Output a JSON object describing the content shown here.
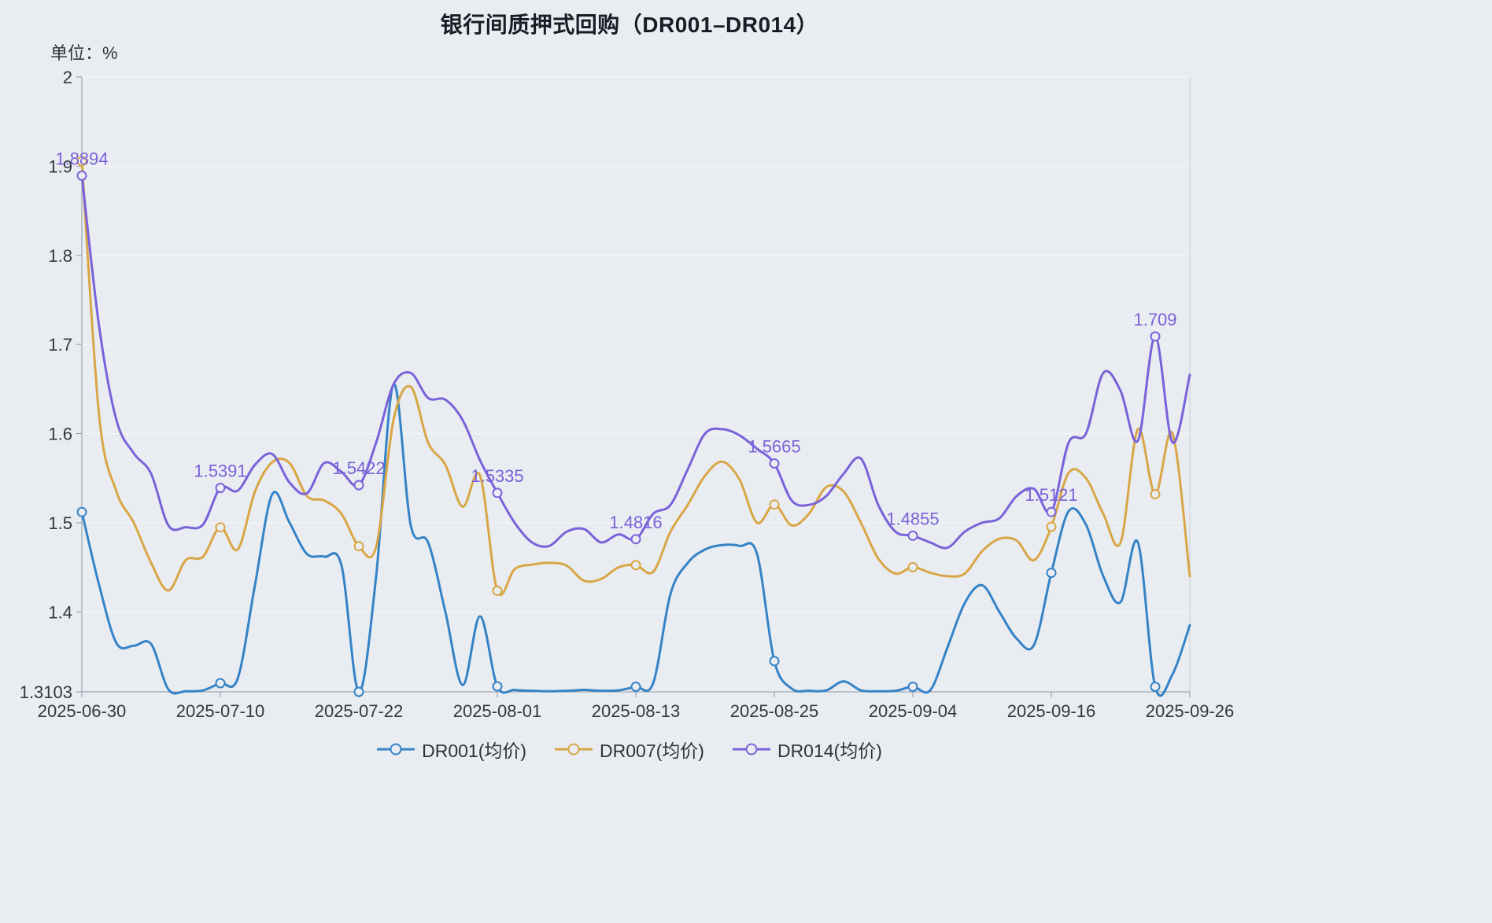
{
  "chart_data": {
    "type": "line",
    "title": "银行间质押式回购（DR001–DR014）",
    "unit_label": "单位：%",
    "background_color": "#e9edf2",
    "smooth": true,
    "grid": "subtle-horizontal",
    "legend_position": "bottom-center",
    "ylim": [
      1.3103,
      2
    ],
    "y_ticks": [
      {
        "value": 2,
        "label": "2"
      },
      {
        "value": 1.9,
        "label": "1.9"
      },
      {
        "value": 1.8,
        "label": "1.8"
      },
      {
        "value": 1.7,
        "label": "1.7"
      },
      {
        "value": 1.6,
        "label": "1.6"
      },
      {
        "value": 1.5,
        "label": "1.5"
      },
      {
        "value": 1.4,
        "label": "1.4"
      },
      {
        "value": 1.3103,
        "label": "1.3103"
      }
    ],
    "x": [
      "2025-06-30",
      "2025-07-01",
      "2025-07-02",
      "2025-07-03",
      "2025-07-04",
      "2025-07-07",
      "2025-07-08",
      "2025-07-09",
      "2025-07-10",
      "2025-07-11",
      "2025-07-14",
      "2025-07-15",
      "2025-07-16",
      "2025-07-17",
      "2025-07-18",
      "2025-07-21",
      "2025-07-22",
      "2025-07-23",
      "2025-07-24",
      "2025-07-25",
      "2025-07-28",
      "2025-07-29",
      "2025-07-30",
      "2025-07-31",
      "2025-08-01",
      "2025-08-04",
      "2025-08-05",
      "2025-08-06",
      "2025-08-07",
      "2025-08-08",
      "2025-08-11",
      "2025-08-12",
      "2025-08-13",
      "2025-08-14",
      "2025-08-15",
      "2025-08-18",
      "2025-08-19",
      "2025-08-20",
      "2025-08-21",
      "2025-08-22",
      "2025-08-25",
      "2025-08-26",
      "2025-08-27",
      "2025-08-28",
      "2025-08-29",
      "2025-09-01",
      "2025-09-02",
      "2025-09-03",
      "2025-09-04",
      "2025-09-05",
      "2025-09-08",
      "2025-09-09",
      "2025-09-10",
      "2025-09-11",
      "2025-09-12",
      "2025-09-15",
      "2025-09-16",
      "2025-09-17",
      "2025-09-18",
      "2025-09-19",
      "2025-09-22",
      "2025-09-23",
      "2025-09-24",
      "2025-09-25",
      "2025-09-26"
    ],
    "x_tick_indices": [
      0,
      8,
      16,
      24,
      32,
      40,
      48,
      56,
      64
    ],
    "marker_indices": [
      0,
      8,
      16,
      24,
      32,
      40,
      48,
      56,
      62
    ],
    "series": [
      {
        "name": "DR001(均价)",
        "color": "#3583c6",
        "values": [
          1.512,
          1.43,
          1.365,
          1.362,
          1.364,
          1.313,
          1.311,
          1.312,
          1.32,
          1.325,
          1.43,
          1.532,
          1.5,
          1.465,
          1.462,
          1.452,
          1.3103,
          1.44,
          1.6553,
          1.497,
          1.478,
          1.4,
          1.318,
          1.395,
          1.3165,
          1.3125,
          1.3115,
          1.311,
          1.3115,
          1.3125,
          1.3115,
          1.312,
          1.316,
          1.32,
          1.42,
          1.455,
          1.47,
          1.475,
          1.474,
          1.465,
          1.3448,
          1.314,
          1.3115,
          1.312,
          1.322,
          1.312,
          1.311,
          1.3115,
          1.316,
          1.312,
          1.36,
          1.41,
          1.43,
          1.4,
          1.37,
          1.363,
          1.4438,
          1.513,
          1.498,
          1.44,
          1.411,
          1.478,
          1.316,
          1.33,
          1.385
        ]
      },
      {
        "name": "DR007(均价)",
        "color": "#d9a646",
        "values": [
          1.9055,
          1.62,
          1.535,
          1.5,
          1.455,
          1.424,
          1.458,
          1.462,
          1.4949,
          1.47,
          1.535,
          1.568,
          1.567,
          1.53,
          1.525,
          1.51,
          1.4737,
          1.473,
          1.615,
          1.6525,
          1.59,
          1.565,
          1.518,
          1.553,
          1.4237,
          1.448,
          1.453,
          1.455,
          1.452,
          1.435,
          1.437,
          1.45,
          1.4525,
          1.445,
          1.49,
          1.52,
          1.553,
          1.5685,
          1.548,
          1.5,
          1.5205,
          1.497,
          1.51,
          1.54,
          1.535,
          1.5,
          1.46,
          1.443,
          1.4502,
          1.444,
          1.44,
          1.443,
          1.468,
          1.482,
          1.48,
          1.458,
          1.4955,
          1.556,
          1.55,
          1.51,
          1.478,
          1.605,
          1.532,
          1.6,
          1.44
        ]
      },
      {
        "name": "DR014(均价)",
        "color": "#7a62d8",
        "values": [
          1.8894,
          1.72,
          1.615,
          1.578,
          1.555,
          1.497,
          1.495,
          1.498,
          1.5391,
          1.536,
          1.565,
          1.577,
          1.545,
          1.533,
          1.567,
          1.557,
          1.5422,
          1.59,
          1.655,
          1.668,
          1.64,
          1.638,
          1.615,
          1.57,
          1.5335,
          1.5,
          1.478,
          1.474,
          1.49,
          1.493,
          1.478,
          1.487,
          1.4816,
          1.51,
          1.52,
          1.56,
          1.6,
          1.605,
          1.598,
          1.583,
          1.5665,
          1.525,
          1.52,
          1.53,
          1.555,
          1.572,
          1.52,
          1.49,
          1.4855,
          1.478,
          1.472,
          1.49,
          1.5,
          1.505,
          1.53,
          1.538,
          1.5121,
          1.59,
          1.6,
          1.668,
          1.648,
          1.592,
          1.709,
          1.59,
          1.666
        ],
        "point_labels": [
          {
            "index": 0,
            "text": "1.8894"
          },
          {
            "index": 8,
            "text": "1.5391"
          },
          {
            "index": 16,
            "text": "1.5422"
          },
          {
            "index": 24,
            "text": "1.5335"
          },
          {
            "index": 32,
            "text": "1.4816"
          },
          {
            "index": 40,
            "text": "1.5665"
          },
          {
            "index": 48,
            "text": "1.4855"
          },
          {
            "index": 56,
            "text": "1.5121"
          },
          {
            "index": 62,
            "text": "1.709"
          }
        ]
      }
    ]
  }
}
